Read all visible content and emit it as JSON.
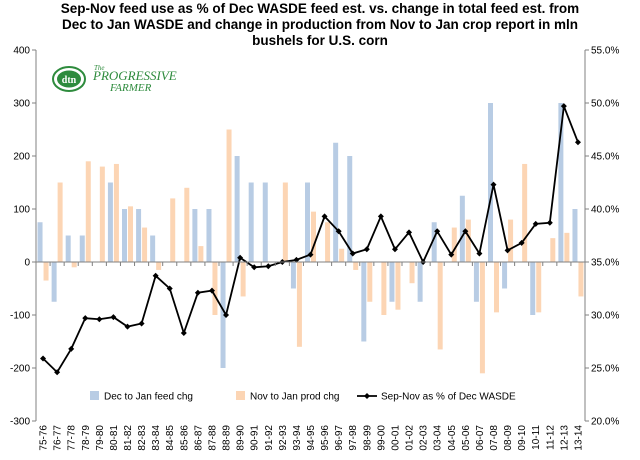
{
  "title_lines": [
    "Sep-Nov feed use as % of Dec WASDE  feed est. vs. change in total feed est. from",
    "Dec to Jan WASDE  and change in production from Nov to Jan crop report in mln",
    "bushels for U.S. corn"
  ],
  "logo": {
    "badge": "dtn",
    "line1": "The",
    "line2": "PROGRESSIVE",
    "line3": "FARMER"
  },
  "colors": {
    "feed_bar": "#b8cce4",
    "prod_bar": "#fcd5b4",
    "line": "#000000",
    "logo_green": "#2e8b3d"
  },
  "chart_data": {
    "type": "bar",
    "categories": [
      "75-76",
      "76-77",
      "77-78",
      "78-79",
      "79-80",
      "80-81",
      "81-82",
      "82-83",
      "83-84",
      "84-85",
      "85-86",
      "86-87",
      "87-88",
      "88-89",
      "89-90",
      "90-91",
      "91-92",
      "92-93",
      "93-94",
      "94-95",
      "95-96",
      "96-97",
      "97-98",
      "98-99",
      "99-00",
      "00-01",
      "01-02",
      "02-03",
      "03-04",
      "04-05",
      "05-06",
      "06-07",
      "07-08",
      "08-09",
      "09-10",
      "10-11",
      "11-12",
      "12-13",
      "13-14"
    ],
    "y_left": {
      "min": -300,
      "max": 400,
      "step": 100,
      "tick_labels": [
        "400",
        "300",
        "200",
        "100",
        "0",
        "-100",
        "-200",
        "-300"
      ]
    },
    "y_right": {
      "min": 20,
      "max": 55,
      "step": 5,
      "tick_labels": [
        "55.0%",
        "50.0%",
        "45.0%",
        "40.0%",
        "35.0%",
        "30.0%",
        "25.0%",
        "20.0%"
      ]
    },
    "series": [
      {
        "name": "Dec to Jan feed chg",
        "kind": "bar",
        "axis": "left",
        "values": [
          75,
          -75,
          50,
          50,
          0,
          150,
          100,
          100,
          50,
          0,
          0,
          100,
          100,
          -200,
          200,
          150,
          150,
          0,
          -50,
          150,
          0,
          225,
          200,
          -150,
          0,
          -75,
          0,
          -75,
          75,
          0,
          125,
          -75,
          300,
          -50,
          0,
          -100,
          0,
          300,
          100
        ]
      },
      {
        "name": "Nov to Jan prod chg",
        "kind": "bar",
        "axis": "left",
        "values": [
          -35,
          150,
          -10,
          190,
          180,
          185,
          105,
          65,
          -15,
          120,
          140,
          30,
          -100,
          250,
          -65,
          0,
          0,
          150,
          -160,
          95,
          75,
          25,
          -15,
          -75,
          -100,
          -90,
          -40,
          0,
          -165,
          65,
          80,
          -210,
          -95,
          80,
          185,
          -95,
          45,
          55,
          -65
        ]
      },
      {
        "name": "Sep-Nov as % of Dec WASDE",
        "kind": "line",
        "axis": "right",
        "values": [
          25.9,
          24.6,
          26.8,
          29.7,
          29.6,
          29.8,
          28.9,
          29.2,
          33.7,
          32.5,
          28.3,
          32.1,
          32.3,
          30.0,
          35.4,
          34.5,
          34.6,
          35.0,
          35.2,
          35.7,
          39.3,
          37.9,
          35.8,
          36.2,
          39.3,
          36.2,
          37.8,
          35.0,
          37.9,
          35.7,
          37.9,
          35.8,
          42.3,
          36.1,
          36.8,
          38.6,
          38.7,
          49.7,
          46.3
        ]
      }
    ],
    "legend": {
      "position": "bottom"
    },
    "grid": false
  }
}
